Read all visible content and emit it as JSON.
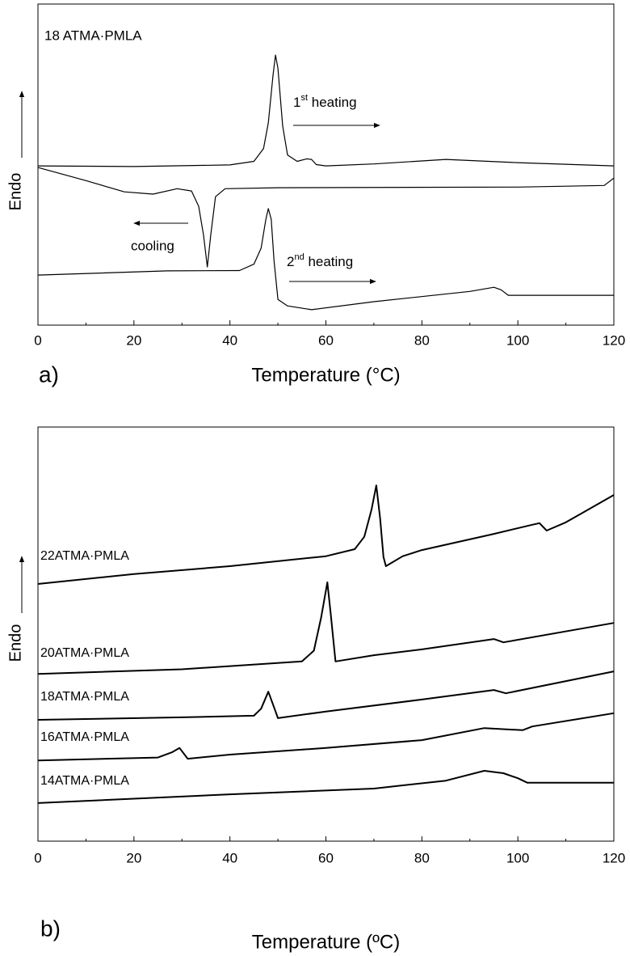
{
  "chart_data": [
    {
      "type": "line",
      "x_label": "Temperature (°C)",
      "y_label": "Endo",
      "xlim": [
        0,
        120
      ],
      "xticks": [
        0,
        20,
        40,
        60,
        80,
        100,
        120
      ],
      "xminorticks": [
        10,
        30,
        50,
        70,
        90,
        110
      ],
      "ylim": [
        0,
        100
      ],
      "annotations": [
        {
          "text": "18 ATMA·PMLA"
        },
        {
          "parts": [
            "1",
            "st",
            " heating"
          ]
        },
        {
          "text": "cooling"
        },
        {
          "parts": [
            "2",
            "nd",
            " heating"
          ]
        },
        {
          "text": "a)"
        }
      ],
      "series": [
        {
          "color": "#000000",
          "x": [
            0,
            20,
            40,
            45,
            47,
            48,
            49,
            49.5,
            50,
            51,
            52,
            54,
            56,
            57,
            58,
            60,
            70,
            85,
            100,
            120
          ],
          "values": [
            49.6,
            49.4,
            49.9,
            51,
            55,
            63,
            78,
            84.1,
            80,
            62,
            53,
            51,
            51.8,
            51.6,
            50,
            49.6,
            50.2,
            51.6,
            50.6,
            49.6
          ]
        },
        {
          "color": "#000000",
          "x": [
            0,
            10,
            18,
            24,
            29,
            32,
            33.5,
            34.5,
            35.3,
            36,
            37,
            39,
            50,
            100,
            118,
            120
          ],
          "values": [
            49.1,
            45,
            41.5,
            40.8,
            42.5,
            41.8,
            37,
            28,
            18.1,
            28,
            40,
            42.5,
            42.8,
            43,
            43.5,
            45.8
          ]
        },
        {
          "color": "#000000",
          "x": [
            0,
            27,
            42,
            45,
            46.5,
            47.5,
            48,
            48.6,
            49.2,
            50,
            52,
            57,
            70,
            90,
            95,
            96.5,
            98,
            120
          ],
          "values": [
            15.6,
            16.9,
            17,
            19,
            24,
            33,
            36.3,
            33,
            20,
            8,
            6,
            4.8,
            7.3,
            10.5,
            11.8,
            11,
            9.3,
            9.3
          ]
        }
      ]
    },
    {
      "type": "line",
      "x_label": "Temperature (ºC)",
      "y_label": "Endo",
      "xlim": [
        0,
        120
      ],
      "xticks": [
        0,
        20,
        40,
        60,
        80,
        100,
        120
      ],
      "xminorticks": [
        10,
        30,
        50,
        70,
        90,
        110
      ],
      "ylim": [
        0,
        100
      ],
      "annotations": [
        {
          "text": "b)"
        }
      ],
      "series": [
        {
          "name": "22ATMA·PMLA",
          "color": "#000000",
          "x": [
            0,
            20,
            40,
            60,
            66,
            68,
            69.5,
            70.5,
            71.3,
            72,
            72.5,
            76,
            80,
            95,
            103,
            104.5,
            106,
            110,
            120
          ],
          "values": [
            62.1,
            64.5,
            66.4,
            68.8,
            70.5,
            73.5,
            80,
            85.9,
            78,
            68.6,
            66.4,
            68.8,
            70.3,
            74.2,
            76.4,
            76.8,
            75,
            77,
            83.6
          ]
        },
        {
          "name": "20ATMA·PMLA",
          "color": "#000000",
          "x": [
            0,
            30,
            55,
            57.5,
            59,
            60.3,
            61,
            62,
            70,
            80,
            95,
            97,
            120
          ],
          "values": [
            40.4,
            41.5,
            43.4,
            46,
            54,
            62.5,
            55,
            43.4,
            44.9,
            46.3,
            48.8,
            48,
            52.7
          ]
        },
        {
          "name": "18ATMA·PMLA",
          "color": "#000000",
          "x": [
            0,
            30,
            45,
            46.5,
            48,
            49.3,
            50,
            60,
            80,
            95,
            97.5,
            120
          ],
          "values": [
            29.3,
            29.9,
            30.3,
            32,
            36.1,
            32,
            29.7,
            31.3,
            34.2,
            36.5,
            35.7,
            41
          ]
        },
        {
          "name": "16ATMA·PMLA",
          "color": "#000000",
          "x": [
            0,
            25,
            28,
            29.5,
            31.2,
            40,
            60,
            80,
            93,
            101,
            103,
            120
          ],
          "values": [
            19.5,
            20.2,
            21.5,
            22.5,
            19.9,
            20.9,
            22.5,
            24.4,
            27.3,
            26.8,
            27.7,
            30.9
          ]
        },
        {
          "name": "14ATMA·PMLA",
          "color": "#000000",
          "x": [
            0,
            40,
            70,
            85,
            93,
            97,
            100,
            102,
            120
          ],
          "values": [
            9.2,
            11.3,
            12.7,
            14.6,
            17,
            16.4,
            15.2,
            14.1,
            14.1
          ]
        }
      ]
    }
  ]
}
